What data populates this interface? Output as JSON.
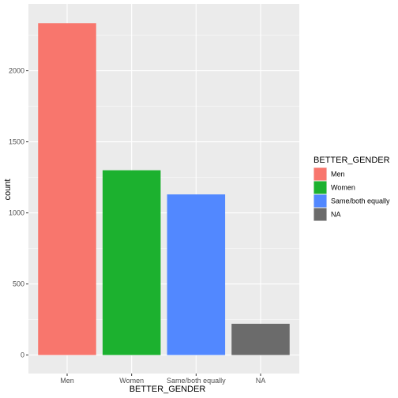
{
  "chart_data": {
    "type": "bar",
    "categories": [
      "Men",
      "Women",
      "Same/both equally",
      "NA"
    ],
    "values": [
      2335,
      1300,
      1130,
      220
    ],
    "colors": [
      "#F8766D",
      "#1CB12F",
      "#5288FF",
      "#6B6B6B"
    ],
    "xlabel": "BETTER_GENDER",
    "ylabel": "count",
    "ylim": [
      -130,
      2470
    ],
    "y_ticks": [
      0,
      500,
      1000,
      1500,
      2000
    ],
    "y_tick_labels": [
      "0",
      "500",
      "1000",
      "1500",
      "2000"
    ],
    "grid": true,
    "panel_background": "#EBEBEB",
    "legend": {
      "title": "BETTER_GENDER",
      "position": "right",
      "items": [
        "Men",
        "Women",
        "Same/both equally",
        "NA"
      ]
    }
  }
}
